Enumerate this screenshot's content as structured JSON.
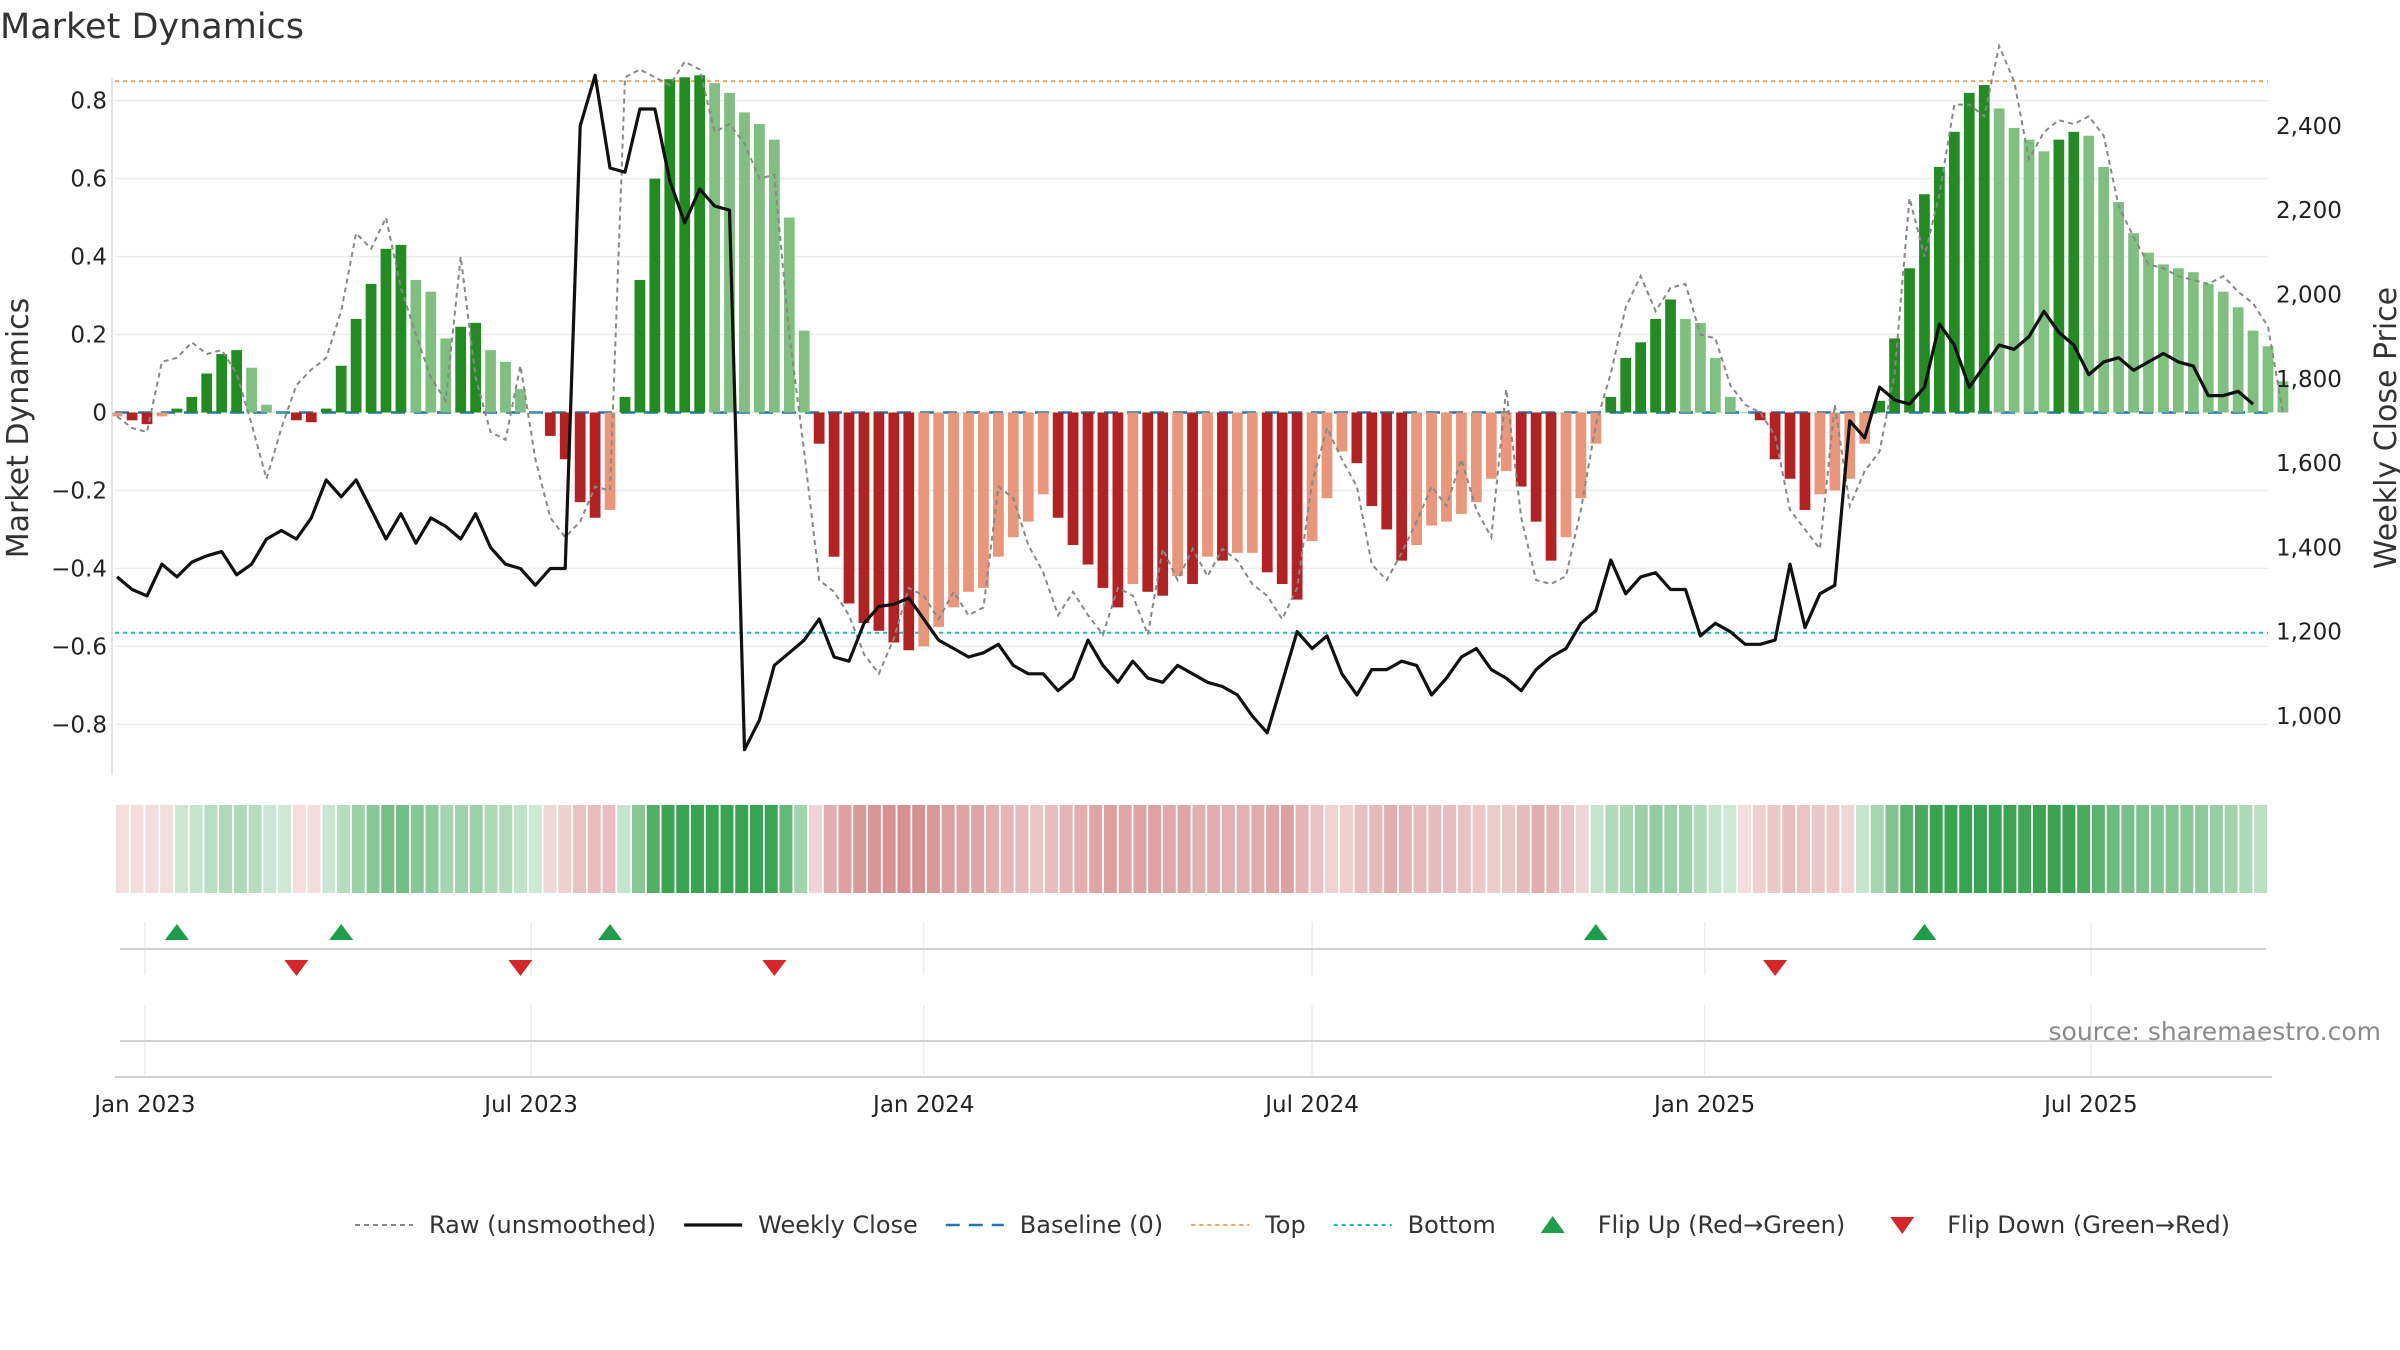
{
  "chart_data": {
    "type": "bar",
    "title": "Market Dynamics",
    "ylabel_left": "Market Dynamics",
    "ylabel_right": "Weekly Close Price",
    "source": "source: sharemaestro.com",
    "ylim_left": [
      -0.93,
      0.93
    ],
    "ylim_right": [
      860,
      2580
    ],
    "yticks_left": [
      {
        "value": 0.8,
        "label": "0.8"
      },
      {
        "value": 0.6,
        "label": "0.6"
      },
      {
        "value": 0.4,
        "label": "0.4"
      },
      {
        "value": 0.2,
        "label": "0.2"
      },
      {
        "value": 0,
        "label": "0"
      },
      {
        "value": -0.2,
        "label": "−0.2"
      },
      {
        "value": -0.4,
        "label": "−0.4"
      },
      {
        "value": -0.6,
        "label": "−0.6"
      },
      {
        "value": -0.8,
        "label": "−0.8"
      }
    ],
    "yticks_right": [
      {
        "value": 2400,
        "label": "2,400"
      },
      {
        "value": 2200,
        "label": "2,200"
      },
      {
        "value": 2000,
        "label": "2,000"
      },
      {
        "value": 1800,
        "label": "1,800"
      },
      {
        "value": 1600,
        "label": "1,600"
      },
      {
        "value": 1400,
        "label": "1,400"
      },
      {
        "value": 1200,
        "label": "1,200"
      },
      {
        "value": 1000,
        "label": "1,000"
      }
    ],
    "xticks": [
      {
        "date": "2023-01-01",
        "label": "Jan 2023"
      },
      {
        "date": "2023-07-01",
        "label": "Jul 2023"
      },
      {
        "date": "2024-01-01",
        "label": "Jan 2024"
      },
      {
        "date": "2024-07-01",
        "label": "Jul 2024"
      },
      {
        "date": "2025-01-01",
        "label": "Jan 2025"
      },
      {
        "date": "2025-07-01",
        "label": "Jul 2025"
      }
    ],
    "x_range": [
      "2022-12-18",
      "2025-09-22"
    ],
    "weeks_start": "2022-12-19",
    "top_line": 0.85,
    "bottom_line": -0.565,
    "baseline": 0,
    "colors": {
      "green_strong": "#228b22",
      "green_light": "#7fbf7f",
      "red_strong": "#b22222",
      "red_light": "#e9967a",
      "raw": "#888888",
      "close": "#111111",
      "baseline": "#1f77b4",
      "top": "#f4a460",
      "bottom": "#17becf",
      "flip_up": "#1e9e4a",
      "flip_down": "#d62728"
    },
    "bars": [
      -0.01,
      -0.02,
      -0.03,
      -0.01,
      0.01,
      0.04,
      0.1,
      0.15,
      0.16,
      0.115,
      0.02,
      0.0,
      -0.02,
      -0.025,
      0.01,
      0.12,
      0.24,
      0.33,
      0.42,
      0.43,
      0.34,
      0.31,
      0.19,
      0.22,
      0.23,
      0.16,
      0.13,
      0.06,
      0.0,
      -0.06,
      -0.12,
      -0.23,
      -0.27,
      -0.25,
      0.04,
      0.34,
      0.6,
      0.855,
      0.86,
      0.865,
      0.845,
      0.82,
      0.77,
      0.74,
      0.7,
      0.5,
      0.21,
      -0.08,
      -0.37,
      -0.49,
      -0.54,
      -0.56,
      -0.59,
      -0.61,
      -0.6,
      -0.55,
      -0.5,
      -0.46,
      -0.45,
      -0.37,
      -0.32,
      -0.28,
      -0.21,
      -0.27,
      -0.34,
      -0.39,
      -0.45,
      -0.5,
      -0.44,
      -0.46,
      -0.47,
      -0.42,
      -0.44,
      -0.37,
      -0.38,
      -0.36,
      -0.36,
      -0.41,
      -0.44,
      -0.48,
      -0.33,
      -0.22,
      -0.1,
      -0.13,
      -0.24,
      -0.3,
      -0.38,
      -0.34,
      -0.29,
      -0.28,
      -0.26,
      -0.23,
      -0.17,
      -0.15,
      -0.19,
      -0.28,
      -0.38,
      -0.32,
      -0.22,
      -0.08,
      0.04,
      0.14,
      0.18,
      0.24,
      0.29,
      0.24,
      0.23,
      0.14,
      0.04,
      0.0,
      -0.02,
      -0.12,
      -0.17,
      -0.25,
      -0.21,
      -0.2,
      -0.17,
      -0.08,
      0.03,
      0.19,
      0.37,
      0.56,
      0.63,
      0.72,
      0.82,
      0.84,
      0.78,
      0.73,
      0.7,
      0.67,
      0.7,
      0.72,
      0.71,
      0.63,
      0.54,
      0.46,
      0.41,
      0.38,
      0.37,
      0.36,
      0.33,
      0.31,
      0.27,
      0.21,
      0.17,
      0.08
    ],
    "raw": [
      -0.01,
      -0.04,
      -0.05,
      0.13,
      0.14,
      0.18,
      0.15,
      0.16,
      0.1,
      -0.03,
      -0.17,
      -0.04,
      0.07,
      0.11,
      0.14,
      0.26,
      0.46,
      0.42,
      0.5,
      0.32,
      0.2,
      0.09,
      0.03,
      0.4,
      0.09,
      -0.05,
      -0.07,
      0.12,
      -0.12,
      -0.27,
      -0.32,
      -0.28,
      -0.19,
      -0.2,
      0.86,
      0.88,
      0.86,
      0.84,
      0.9,
      0.88,
      0.72,
      0.74,
      0.69,
      0.6,
      0.61,
      0.2,
      -0.1,
      -0.43,
      -0.46,
      -0.52,
      -0.62,
      -0.67,
      -0.58,
      -0.45,
      -0.47,
      -0.53,
      -0.46,
      -0.52,
      -0.5,
      -0.19,
      -0.22,
      -0.34,
      -0.41,
      -0.52,
      -0.46,
      -0.52,
      -0.57,
      -0.45,
      -0.47,
      -0.57,
      -0.35,
      -0.43,
      -0.35,
      -0.42,
      -0.35,
      -0.38,
      -0.44,
      -0.47,
      -0.53,
      -0.45,
      -0.18,
      -0.04,
      -0.12,
      -0.19,
      -0.39,
      -0.43,
      -0.36,
      -0.28,
      -0.19,
      -0.24,
      -0.12,
      -0.25,
      -0.32,
      0.06,
      -0.27,
      -0.43,
      -0.44,
      -0.42,
      -0.25,
      -0.03,
      0.1,
      0.27,
      0.35,
      0.26,
      0.32,
      0.33,
      0.2,
      0.19,
      0.07,
      0.02,
      0.0,
      -0.06,
      -0.25,
      -0.3,
      -0.35,
      0.02,
      -0.24,
      -0.15,
      -0.1,
      0.1,
      0.55,
      0.4,
      0.56,
      0.79,
      0.79,
      0.76,
      0.94,
      0.85,
      0.65,
      0.72,
      0.75,
      0.74,
      0.76,
      0.71,
      0.53,
      0.45,
      0.38,
      0.37,
      0.35,
      0.34,
      0.33,
      0.35,
      0.31,
      0.28,
      0.22,
      0.0
    ],
    "close": [
      1330,
      1300,
      1285,
      1360,
      1330,
      1365,
      1380,
      1390,
      1335,
      1360,
      1420,
      1440,
      1420,
      1470,
      1560,
      1520,
      1560,
      1490,
      1420,
      1480,
      1410,
      1470,
      1450,
      1420,
      1480,
      1400,
      1360,
      1350,
      1310,
      1350,
      1350,
      2400,
      2520,
      2300,
      2290,
      2440,
      2440,
      2270,
      2170,
      2250,
      2210,
      2200,
      920,
      990,
      1120,
      1150,
      1180,
      1230,
      1140,
      1130,
      1220,
      1260,
      1265,
      1280,
      1230,
      1180,
      1160,
      1140,
      1150,
      1170,
      1120,
      1100,
      1100,
      1060,
      1090,
      1180,
      1120,
      1080,
      1130,
      1090,
      1080,
      1120,
      1100,
      1080,
      1070,
      1050,
      1000,
      960,
      1080,
      1200,
      1160,
      1190,
      1100,
      1050,
      1110,
      1110,
      1130,
      1120,
      1050,
      1090,
      1140,
      1160,
      1110,
      1090,
      1060,
      1110,
      1140,
      1160,
      1220,
      1250,
      1370,
      1290,
      1330,
      1340,
      1300,
      1300,
      1190,
      1220,
      1200,
      1170,
      1170,
      1180,
      1360,
      1210,
      1290,
      1310,
      1700,
      1660,
      1780,
      1750,
      1740,
      1780,
      1930,
      1880,
      1780,
      1830,
      1880,
      1870,
      1900,
      1960,
      1910,
      1880,
      1810,
      1840,
      1850,
      1820,
      1840,
      1860,
      1840,
      1830,
      1760,
      1760,
      1770,
      1740
    ],
    "flip_up": [
      "2023-01-16",
      "2023-04-03",
      "2023-08-07",
      "2024-11-11",
      "2025-04-14"
    ],
    "flip_down": [
      "2023-03-13",
      "2023-06-26",
      "2023-10-23",
      "2025-02-03"
    ],
    "legend": [
      {
        "key": "raw",
        "label": "Raw (unsmoothed)"
      },
      {
        "key": "close",
        "label": "Weekly Close"
      },
      {
        "key": "baseline",
        "label": "Baseline (0)"
      },
      {
        "key": "top",
        "label": "Top"
      },
      {
        "key": "bottom",
        "label": "Bottom"
      },
      {
        "key": "flip_up",
        "label": "Flip Up (Red→Green)"
      },
      {
        "key": "flip_down",
        "label": "Flip Down (Green→Red)"
      }
    ]
  }
}
